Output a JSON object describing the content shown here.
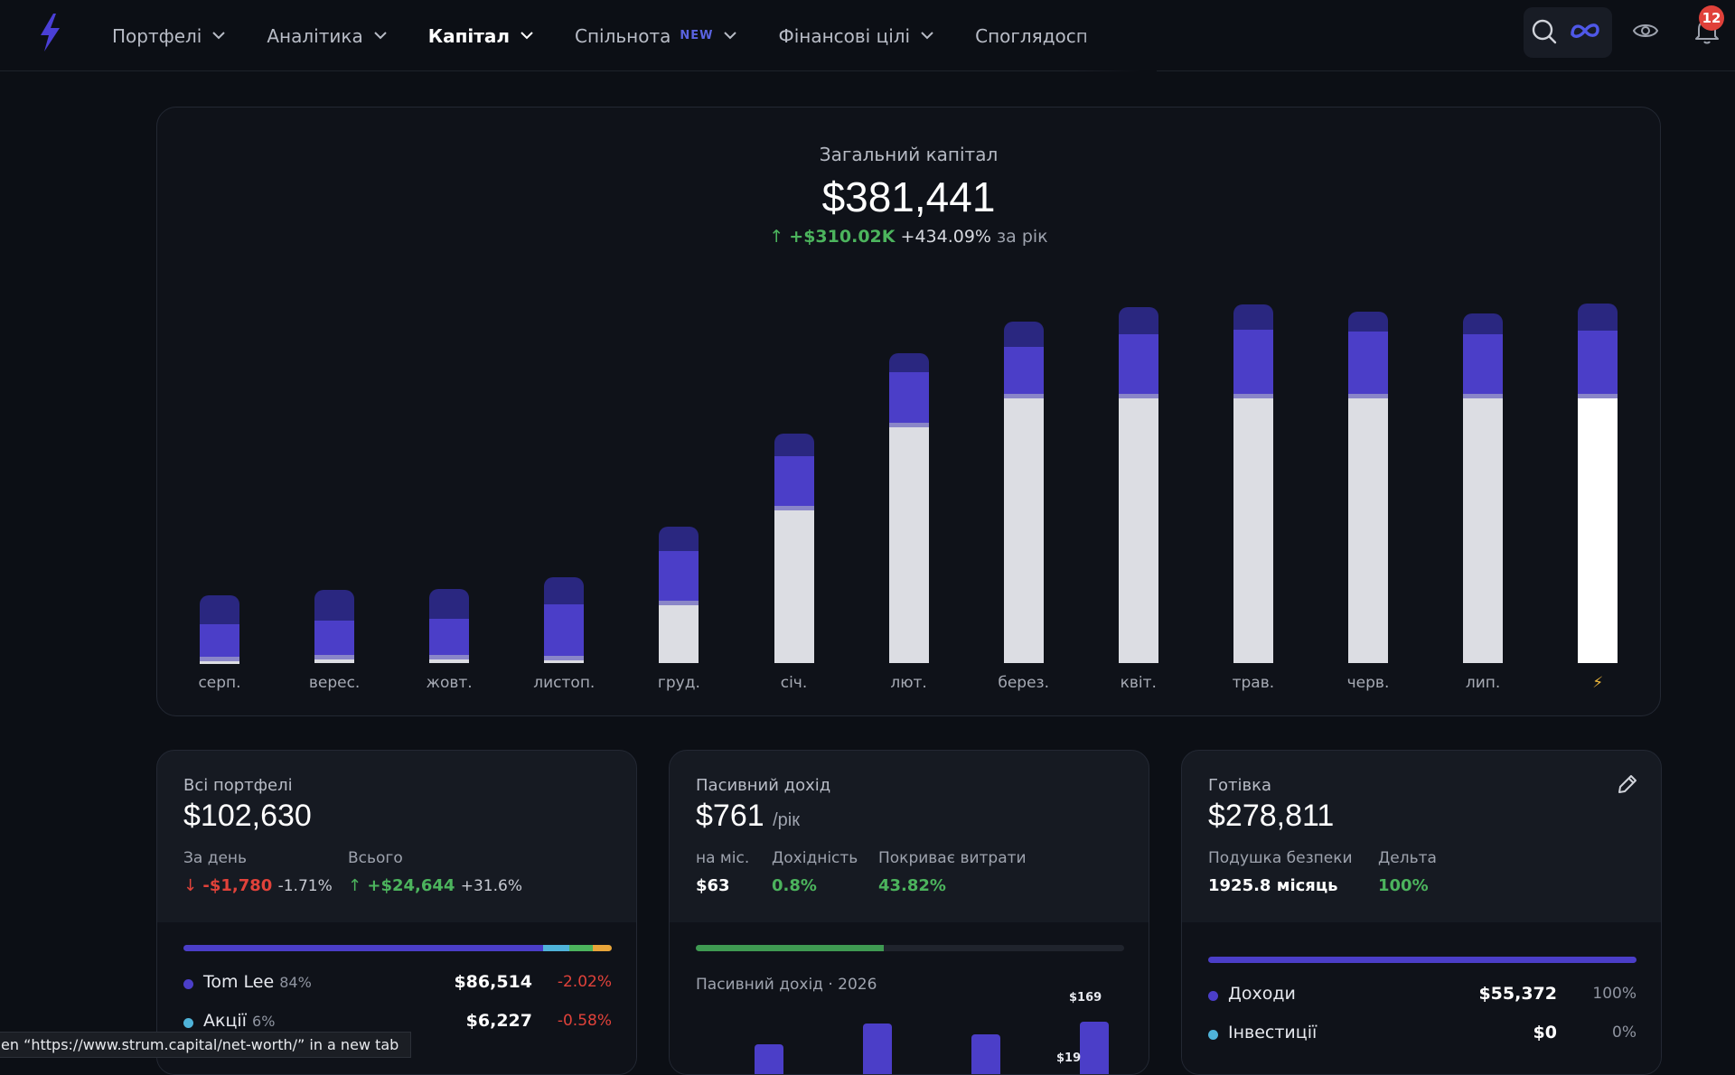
{
  "nav": {
    "items": [
      {
        "label": "Портфелі",
        "active": false,
        "badge": ""
      },
      {
        "label": "Аналітика",
        "active": false,
        "badge": ""
      },
      {
        "label": "Капітал",
        "active": true,
        "badge": ""
      },
      {
        "label": "Спільнота",
        "active": false,
        "badge": "NEW"
      },
      {
        "label": "Фінансові цілі",
        "active": false,
        "badge": ""
      },
      {
        "label": "Споглядосп",
        "active": false,
        "badge": ""
      }
    ],
    "notifications": "12"
  },
  "net_worth": {
    "label": "Загальний капітал",
    "value": "$381,441",
    "change_abs": "+$310.02K",
    "change_pct": "+434.09%",
    "period": "за рік"
  },
  "chart_data": {
    "type": "bar",
    "stacked": true,
    "categories": [
      "серп.",
      "верес.",
      "жовт.",
      "листоп.",
      "груд.",
      "січ.",
      "лют.",
      "берез.",
      "квіт.",
      "трав.",
      "черв.",
      "лип.",
      "⚡"
    ],
    "series": [
      {
        "values": [
          4,
          5,
          5,
          4,
          65,
          170,
          262,
          294,
          294,
          294,
          294,
          294,
          294
        ]
      },
      {
        "values": [
          4,
          5,
          5,
          5,
          5,
          5,
          5,
          5,
          5,
          5,
          5,
          5,
          5
        ]
      },
      {
        "values": [
          36,
          38,
          40,
          57,
          55,
          55,
          56,
          52,
          66,
          71,
          69,
          66,
          70
        ]
      },
      {
        "values": [
          32,
          34,
          33,
          30,
          27,
          25,
          21,
          28,
          30,
          28,
          22,
          23,
          30
        ]
      }
    ],
    "colors": [
      "#dcdde3",
      "#8a86c8",
      "#4b3ec8",
      "#2a2780"
    ]
  },
  "portfolios": {
    "title": "Всі портфелі",
    "value": "$102,630",
    "day_label": "За день",
    "day_change": "-$1,780",
    "day_pct": "-1.71%",
    "total_label": "Всього",
    "total_change": "+$24,644",
    "total_pct": "+31.6%",
    "progress": [
      {
        "share": 0.84,
        "color": "#4b3ec8"
      },
      {
        "share": 0.06,
        "color": "#4fb3d9"
      },
      {
        "share": 0.055,
        "color": "#4cb45d"
      },
      {
        "share": 0.045,
        "color": "#e8a53a"
      }
    ],
    "rows": [
      {
        "name": "Tom Lee",
        "pct": "84%",
        "amount": "$86,514",
        "change": "-2.02%",
        "color": "#4b3ec8"
      },
      {
        "name": "Акції",
        "pct": "6%",
        "amount": "$6,227",
        "change": "-0.58%",
        "color": "#4fb3d9"
      }
    ]
  },
  "passive": {
    "title": "Пасивний дохід",
    "value": "$761",
    "unit": "/рік",
    "month_label": "на міс.",
    "month_value": "$63",
    "yield_label": "Дохідність",
    "yield_value": "0.8%",
    "covers_label": "Покриває витрати",
    "covers_value": "43.82%",
    "progress_share": 0.4382,
    "chart_title": "Пасивний дохід · 2026",
    "mini_bars": [
      {
        "value": 5
      },
      {
        "value": 28
      },
      {
        "value": 16
      },
      {
        "value": 30,
        "label": "$169"
      }
    ],
    "mini_partial_label": "$19"
  },
  "cash": {
    "title": "Готівка",
    "value": "$278,811",
    "cushion_label": "Подушка безпеки",
    "cushion_value": "1925.8 місяць",
    "delta_label": "Дельта",
    "delta_value": "100%",
    "rows": [
      {
        "name": "Доходи",
        "amount": "$55,372",
        "pct": "100%",
        "color": "#4b3ec8"
      },
      {
        "name": "Інвестиції",
        "amount": "$0",
        "pct": "0%",
        "color": "#4fb3d9"
      }
    ]
  },
  "status_bar": {
    "text": "en “https://www.strum.capital/net-worth/” in a new tab"
  },
  "icons": {
    "logo": "lightning-logo-icon",
    "search": "search-icon",
    "meta": "meta-icon",
    "eye": "eye-icon",
    "bell": "bell-icon",
    "edit": "pencil-icon"
  }
}
